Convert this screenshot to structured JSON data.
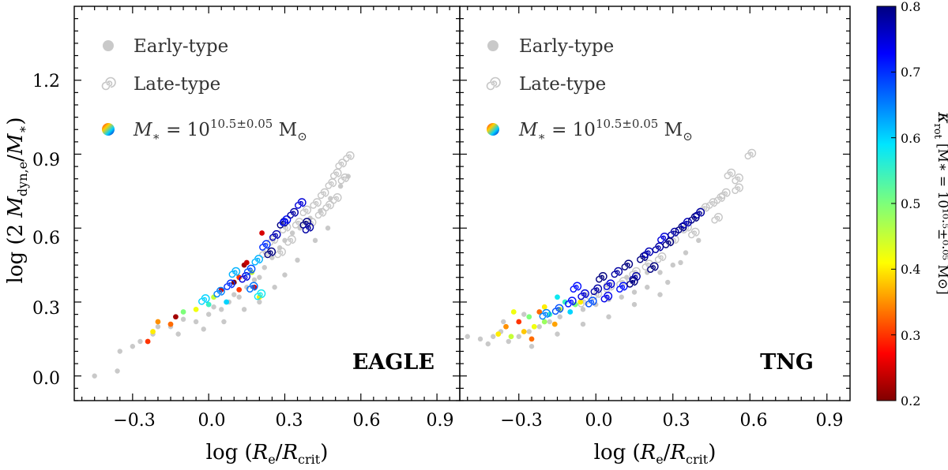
{
  "figure": {
    "ylabel": "log (2 M_dyn,e / M_*)",
    "ylabel_parts": {
      "pre": "log (2 ",
      "m1": "M",
      "s1": "dyn,e",
      "slash": "/",
      "m2": "M",
      "s2": "∗",
      "post": ")"
    },
    "xlabel_parts": {
      "pre": "log (",
      "m1": "R",
      "s1": "e",
      "slash": "/",
      "m2": "R",
      "s2": "crit",
      "post": ")"
    }
  },
  "legend": {
    "early": "Early-type",
    "late": "Late-type",
    "mass_pre": "M",
    "mass_sub": "∗",
    "mass_eq": " = 10",
    "mass_exp": "10.5±0.05",
    "mass_unit": " M",
    "mass_unit_sub": "⊙"
  },
  "colorbar": {
    "title": "κ_rot [M_* = 10^(10.5±0.05) M_⊙]",
    "title_main": "κ",
    "title_sub": "rot",
    "title_bracket": "[M∗ = 10¹⁰·⁵±⁰·⁰⁵ M⊙]",
    "range": [
      0.2,
      0.8
    ],
    "ticks": [
      "0.2",
      "0.3",
      "0.4",
      "0.5",
      "0.6",
      "0.7",
      "0.8"
    ]
  },
  "colors": {
    "background_points": "#c9c9c9",
    "spiral_gray": "#c6c6c6"
  },
  "chart_data": [
    {
      "type": "scatter",
      "title": "EAGLE",
      "xlabel": "log (R_e/R_crit)",
      "ylabel": "log (2 M_dyn,e/M_*)",
      "xlim": [
        -0.53,
        0.99
      ],
      "ylim": [
        -0.1,
        1.5
      ],
      "xticks": [
        "−0.3",
        "0.0",
        "0.3",
        "0.6",
        "0.9"
      ],
      "xtick_values": [
        -0.3,
        0.0,
        0.3,
        0.6,
        0.9
      ],
      "yticks": [
        "0.0",
        "0.3",
        "0.6",
        "0.9",
        "1.2"
      ],
      "ytick_values": [
        0.0,
        0.3,
        0.6,
        0.9,
        1.2
      ],
      "series": [
        {
          "name": "Early-type (all)",
          "marker": "gray-dot",
          "points": [
            [
              -0.45,
              0.0
            ],
            [
              -0.36,
              0.02
            ],
            [
              -0.35,
              0.1
            ],
            [
              -0.3,
              0.12
            ],
            [
              -0.27,
              0.14
            ],
            [
              -0.22,
              0.17
            ],
            [
              -0.2,
              0.2
            ],
            [
              -0.15,
              0.2
            ],
            [
              -0.1,
              0.23
            ],
            [
              -0.05,
              0.22
            ],
            [
              0.0,
              0.25
            ],
            [
              0.02,
              0.28
            ],
            [
              0.05,
              0.27
            ],
            [
              0.08,
              0.3
            ],
            [
              0.1,
              0.33
            ],
            [
              0.12,
              0.32
            ],
            [
              0.15,
              0.36
            ],
            [
              0.18,
              0.39
            ],
            [
              0.2,
              0.4
            ],
            [
              0.22,
              0.44
            ],
            [
              0.25,
              0.48
            ],
            [
              0.28,
              0.52
            ],
            [
              0.3,
              0.55
            ],
            [
              0.33,
              0.58
            ],
            [
              0.36,
              0.6
            ],
            [
              0.4,
              0.64
            ],
            [
              0.44,
              0.67
            ],
            [
              0.48,
              0.72
            ],
            [
              0.52,
              0.77
            ],
            [
              0.55,
              0.81
            ],
            [
              -0.12,
              0.17
            ],
            [
              -0.02,
              0.19
            ],
            [
              0.06,
              0.22
            ],
            [
              0.14,
              0.27
            ],
            [
              0.2,
              0.3
            ],
            [
              0.26,
              0.36
            ],
            [
              0.3,
              0.41
            ],
            [
              0.35,
              0.47
            ],
            [
              0.42,
              0.55
            ],
            [
              0.47,
              0.6
            ]
          ]
        },
        {
          "name": "Late-type (all)",
          "marker": "gray-spiral",
          "points": [
            [
              0.25,
              0.55
            ],
            [
              0.3,
              0.6
            ],
            [
              0.35,
              0.62
            ],
            [
              0.38,
              0.67
            ],
            [
              0.42,
              0.7
            ],
            [
              0.45,
              0.74
            ],
            [
              0.48,
              0.78
            ],
            [
              0.5,
              0.82
            ],
            [
              0.52,
              0.86
            ],
            [
              0.55,
              0.89
            ],
            [
              0.4,
              0.62
            ],
            [
              0.44,
              0.66
            ],
            [
              0.47,
              0.69
            ],
            [
              0.53,
              0.8
            ],
            [
              0.32,
              0.55
            ],
            [
              0.28,
              0.5
            ],
            [
              0.22,
              0.5
            ],
            [
              0.5,
              0.72
            ]
          ]
        },
        {
          "name": "M_* = 10^(10.5±0.05) early",
          "marker": "colored-dot",
          "points": [
            [
              -0.24,
              0.14,
              0.3
            ],
            [
              -0.22,
              0.18,
              0.4
            ],
            [
              -0.2,
              0.22,
              0.35
            ],
            [
              -0.15,
              0.21,
              0.33
            ],
            [
              -0.13,
              0.24,
              0.22
            ],
            [
              -0.1,
              0.26,
              0.5
            ],
            [
              -0.05,
              0.27,
              0.42
            ],
            [
              0.0,
              0.29,
              0.55
            ],
            [
              0.02,
              0.32,
              0.45
            ],
            [
              0.05,
              0.35,
              0.25
            ],
            [
              0.07,
              0.3,
              0.6
            ],
            [
              0.1,
              0.38,
              0.2
            ],
            [
              0.12,
              0.4,
              0.3
            ],
            [
              0.14,
              0.45,
              0.22
            ],
            [
              0.15,
              0.46,
              0.24
            ],
            [
              0.17,
              0.42,
              0.45
            ],
            [
              0.18,
              0.36,
              0.26
            ],
            [
              0.2,
              0.32,
              0.4
            ],
            [
              0.12,
              0.35,
              0.3
            ],
            [
              0.21,
              0.58,
              0.25
            ]
          ]
        },
        {
          "name": "M_* = 10^(10.5±0.05) late",
          "marker": "colored-spiral",
          "points": [
            [
              -0.02,
              0.31,
              0.6
            ],
            [
              0.04,
              0.34,
              0.65
            ],
            [
              0.08,
              0.37,
              0.7
            ],
            [
              0.1,
              0.42,
              0.62
            ],
            [
              0.14,
              0.4,
              0.75
            ],
            [
              0.16,
              0.43,
              0.68
            ],
            [
              0.19,
              0.47,
              0.62
            ],
            [
              0.22,
              0.53,
              0.7
            ],
            [
              0.24,
              0.5,
              0.8
            ],
            [
              0.26,
              0.57,
              0.77
            ],
            [
              0.29,
              0.62,
              0.8
            ],
            [
              0.3,
              0.63,
              0.72
            ],
            [
              0.33,
              0.66,
              0.78
            ],
            [
              0.36,
              0.7,
              0.75
            ],
            [
              0.38,
              0.62,
              0.8
            ],
            [
              0.39,
              0.6,
              0.78
            ],
            [
              0.2,
              0.33,
              0.58
            ],
            [
              0.17,
              0.36,
              0.66
            ]
          ]
        }
      ]
    },
    {
      "type": "scatter",
      "title": "TNG",
      "xlabel": "log (R_e/R_crit)",
      "ylabel": "log (2 M_dyn,e/M_*)",
      "xlim": [
        -0.53,
        0.99
      ],
      "ylim": [
        -0.1,
        1.5
      ],
      "xticks": [
        "−0.3",
        "0.0",
        "0.3",
        "0.6",
        "0.9"
      ],
      "xtick_values": [
        -0.3,
        0.0,
        0.3,
        0.6,
        0.9
      ],
      "yticks": [
        "0.0",
        "0.3",
        "0.6",
        "0.9",
        "1.2"
      ],
      "ytick_values": [
        0.0,
        0.3,
        0.6,
        0.9,
        1.2
      ],
      "series": [
        {
          "name": "Early-type (all)",
          "marker": "gray-dot",
          "points": [
            [
              -0.5,
              0.16
            ],
            [
              -0.45,
              0.15
            ],
            [
              -0.42,
              0.13
            ],
            [
              -0.4,
              0.16
            ],
            [
              -0.37,
              0.18
            ],
            [
              -0.34,
              0.14
            ],
            [
              -0.3,
              0.16
            ],
            [
              -0.26,
              0.18
            ],
            [
              -0.22,
              0.2
            ],
            [
              -0.18,
              0.22
            ],
            [
              -0.14,
              0.24
            ],
            [
              -0.1,
              0.26
            ],
            [
              -0.05,
              0.27
            ],
            [
              0.0,
              0.29
            ],
            [
              0.05,
              0.31
            ],
            [
              0.1,
              0.32
            ],
            [
              0.15,
              0.34
            ],
            [
              0.2,
              0.36
            ],
            [
              0.25,
              0.42
            ],
            [
              0.3,
              0.45
            ],
            [
              0.35,
              0.5
            ],
            [
              0.4,
              0.55
            ],
            [
              -0.36,
              0.22
            ],
            [
              -0.28,
              0.25
            ],
            [
              -0.2,
              0.28
            ],
            [
              -0.12,
              0.3
            ],
            [
              -0.04,
              0.33
            ],
            [
              0.04,
              0.37
            ],
            [
              0.12,
              0.4
            ],
            [
              0.2,
              0.42
            ],
            [
              0.28,
              0.38
            ],
            [
              0.33,
              0.46
            ],
            [
              -0.25,
              0.12
            ],
            [
              -0.15,
              0.17
            ],
            [
              -0.05,
              0.21
            ],
            [
              0.05,
              0.24
            ],
            [
              0.15,
              0.29
            ],
            [
              0.25,
              0.33
            ]
          ]
        },
        {
          "name": "Late-type (all)",
          "marker": "gray-spiral",
          "points": [
            [
              0.3,
              0.55
            ],
            [
              0.35,
              0.6
            ],
            [
              0.4,
              0.66
            ],
            [
              0.45,
              0.7
            ],
            [
              0.5,
              0.74
            ],
            [
              0.55,
              0.8
            ],
            [
              0.6,
              0.9
            ],
            [
              0.52,
              0.82
            ],
            [
              0.42,
              0.68
            ],
            [
              0.47,
              0.64
            ],
            [
              0.38,
              0.58
            ],
            [
              0.25,
              0.48
            ],
            [
              0.2,
              0.45
            ],
            [
              0.15,
              0.42
            ],
            [
              0.1,
              0.38
            ],
            [
              0.05,
              0.36
            ],
            [
              0.0,
              0.33
            ],
            [
              -0.05,
              0.3
            ],
            [
              0.55,
              0.76
            ],
            [
              0.48,
              0.72
            ]
          ]
        },
        {
          "name": "M_* = 10^(10.5±0.05) early",
          "marker": "colored-dot",
          "points": [
            [
              -0.38,
              0.17,
              0.4
            ],
            [
              -0.35,
              0.2,
              0.35
            ],
            [
              -0.33,
              0.16,
              0.45
            ],
            [
              -0.3,
              0.22,
              0.3
            ],
            [
              -0.28,
              0.18,
              0.38
            ],
            [
              -0.26,
              0.24,
              0.5
            ],
            [
              -0.24,
              0.2,
              0.42
            ],
            [
              -0.22,
              0.26,
              0.33
            ],
            [
              -0.2,
              0.22,
              0.48
            ],
            [
              -0.18,
              0.25,
              0.55
            ],
            [
              -0.16,
              0.21,
              0.36
            ],
            [
              -0.14,
              0.27,
              0.44
            ],
            [
              -0.12,
              0.3,
              0.55
            ],
            [
              -0.1,
              0.26,
              0.6
            ],
            [
              -0.08,
              0.29,
              0.5
            ],
            [
              -0.32,
              0.26,
              0.42
            ],
            [
              -0.25,
              0.15,
              0.33
            ],
            [
              -0.2,
              0.28,
              0.4
            ],
            [
              -0.15,
              0.32,
              0.58
            ],
            [
              -0.06,
              0.3,
              0.4
            ]
          ]
        },
        {
          "name": "M_* = 10^(10.5±0.05) late",
          "marker": "colored-spiral",
          "points": [
            [
              -0.2,
              0.25,
              0.65
            ],
            [
              -0.15,
              0.27,
              0.68
            ],
            [
              -0.1,
              0.3,
              0.72
            ],
            [
              -0.05,
              0.33,
              0.75
            ],
            [
              0.0,
              0.35,
              0.78
            ],
            [
              0.02,
              0.4,
              0.8
            ],
            [
              0.05,
              0.37,
              0.75
            ],
            [
              0.08,
              0.42,
              0.78
            ],
            [
              0.1,
              0.36,
              0.72
            ],
            [
              0.12,
              0.45,
              0.8
            ],
            [
              0.15,
              0.4,
              0.78
            ],
            [
              0.18,
              0.48,
              0.8
            ],
            [
              0.2,
              0.5,
              0.77
            ],
            [
              0.22,
              0.44,
              0.8
            ],
            [
              0.24,
              0.52,
              0.78
            ],
            [
              0.26,
              0.56,
              0.75
            ],
            [
              0.28,
              0.54,
              0.8
            ],
            [
              0.3,
              0.58,
              0.78
            ],
            [
              0.33,
              0.6,
              0.8
            ],
            [
              0.35,
              0.62,
              0.77
            ],
            [
              0.38,
              0.64,
              0.8
            ],
            [
              0.4,
              0.66,
              0.78
            ],
            [
              -0.08,
              0.36,
              0.72
            ],
            [
              -0.02,
              0.3,
              0.68
            ],
            [
              0.04,
              0.32,
              0.74
            ],
            [
              0.14,
              0.38,
              0.8
            ]
          ]
        }
      ]
    }
  ]
}
